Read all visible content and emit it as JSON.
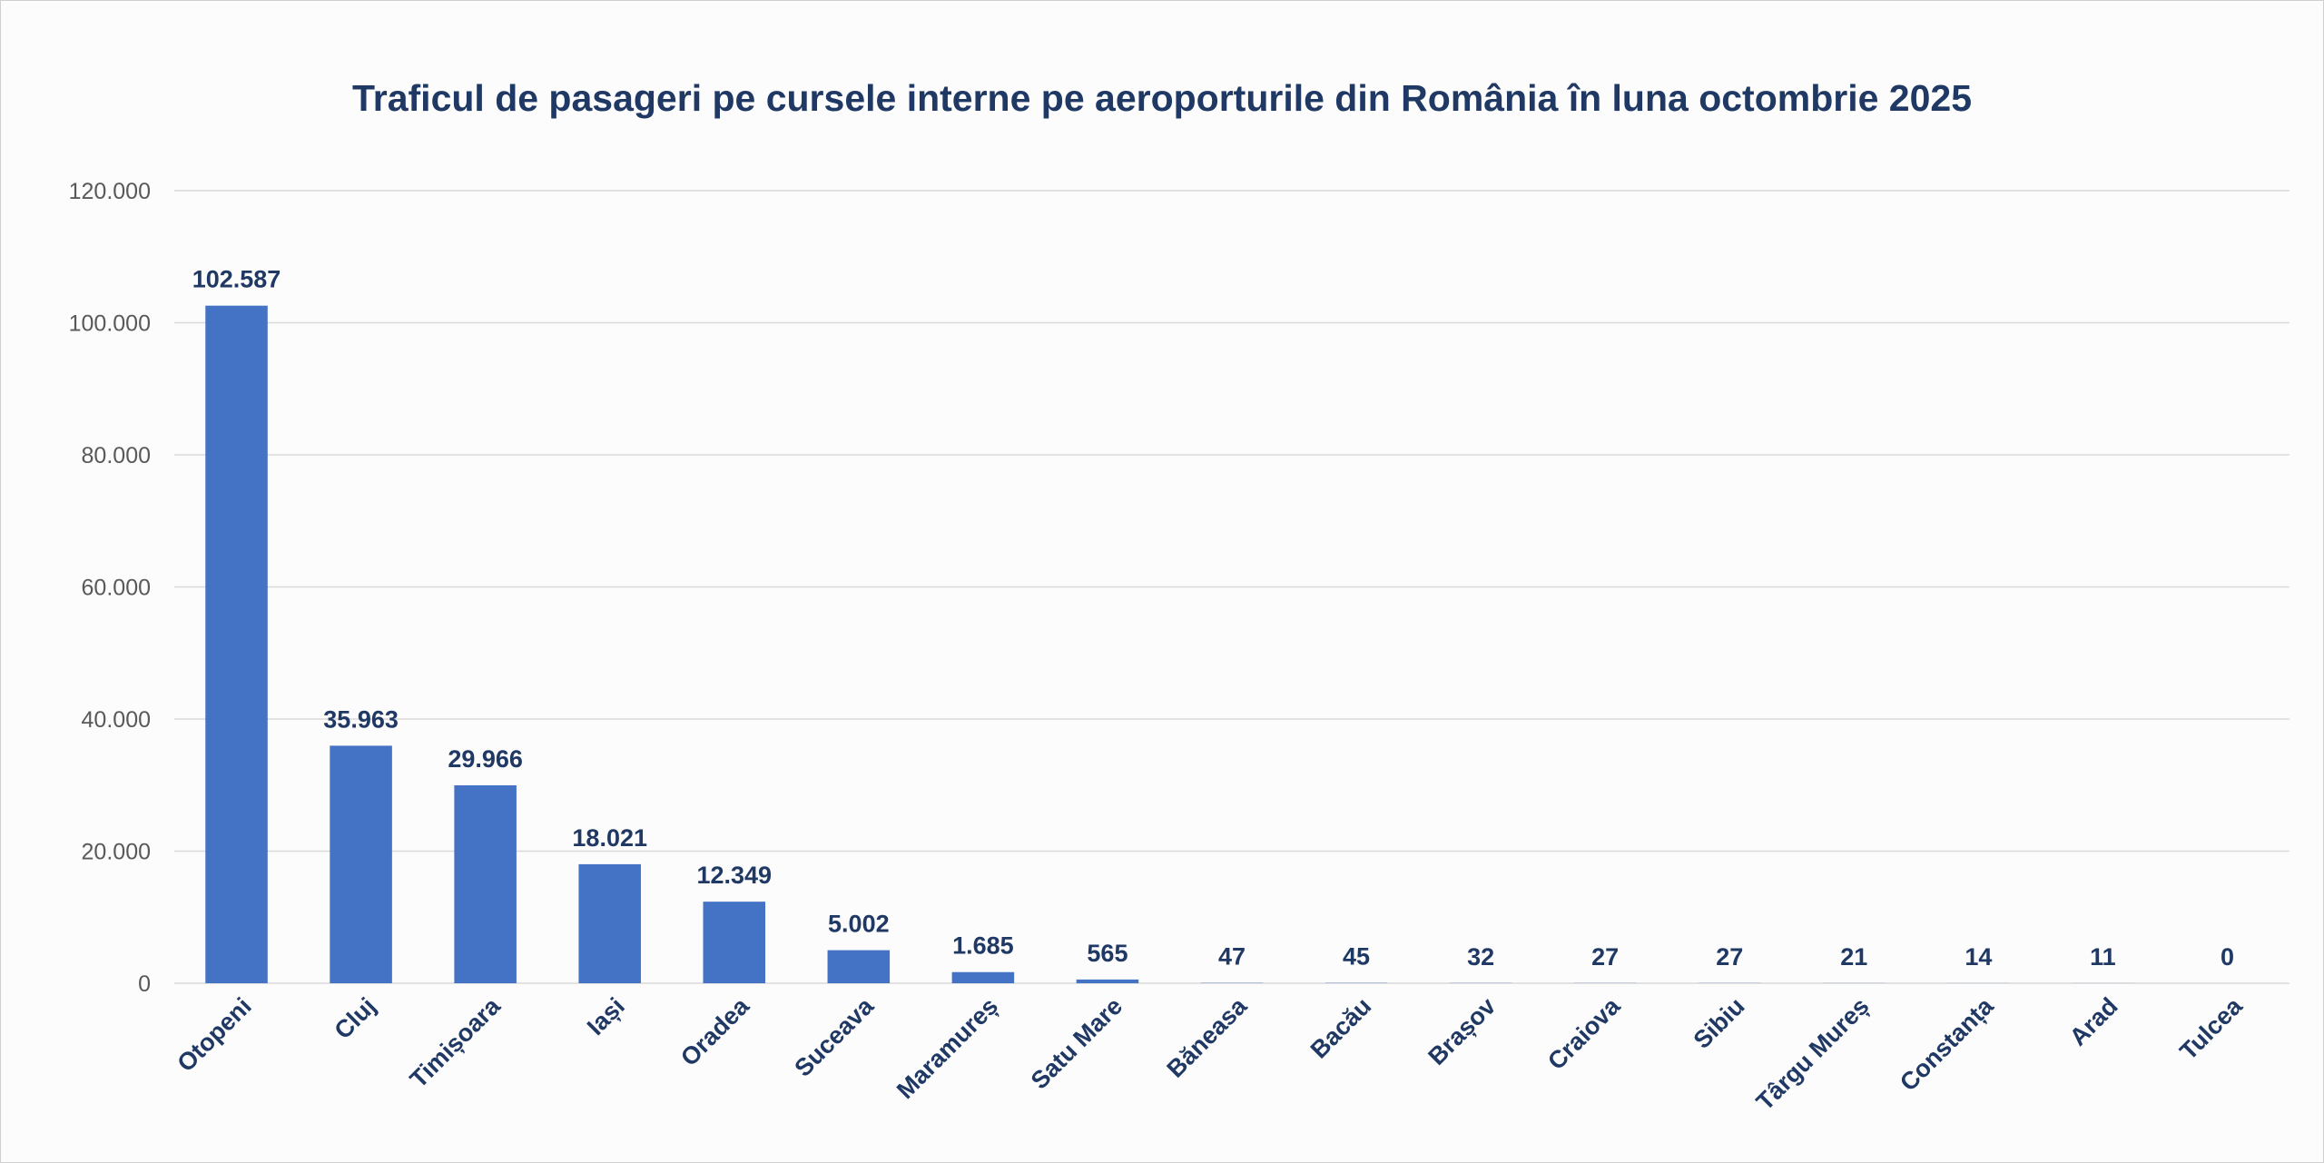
{
  "chart_data": {
    "type": "bar",
    "title": "Traficul de pasageri pe cursele interne pe aeroporturile din România în luna octombrie 2025",
    "xlabel": "",
    "ylabel": "",
    "categories": [
      "Otopeni",
      "Cluj",
      "Timișoara",
      "Iași",
      "Oradea",
      "Suceava",
      "Maramureș",
      "Satu Mare",
      "Băneasa",
      "Bacău",
      "Brașov",
      "Craiova",
      "Sibiu",
      "Târgu Mureș",
      "Constanța",
      "Arad",
      "Tulcea"
    ],
    "values": [
      102587,
      35963,
      29966,
      18021,
      12349,
      5002,
      1685,
      565,
      47,
      45,
      32,
      27,
      27,
      21,
      14,
      11,
      0
    ],
    "value_labels": [
      "102.587",
      "35.963",
      "29.966",
      "18.021",
      "12.349",
      "5.002",
      "1.685",
      "565",
      "47",
      "45",
      "32",
      "27",
      "27",
      "21",
      "14",
      "11",
      "0"
    ],
    "ylim": [
      0,
      120000
    ],
    "yticks": [
      0,
      20000,
      40000,
      60000,
      80000,
      100000,
      120000
    ],
    "ytick_labels": [
      "0",
      "20.000",
      "40.000",
      "60.000",
      "80.000",
      "100.000",
      "120.000"
    ],
    "grid": true,
    "legend": "none",
    "bar_color": "#4472c4",
    "label_color": "#1f3864"
  }
}
